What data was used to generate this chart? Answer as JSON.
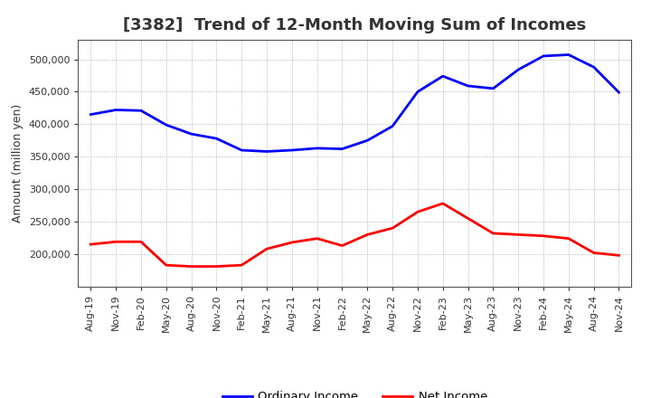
{
  "title": "[3382]  Trend of 12-Month Moving Sum of Incomes",
  "ylabel": "Amount (million yen)",
  "background_color": "#ffffff",
  "plot_bg_color": "#ffffff",
  "grid_color": "#999999",
  "x_labels": [
    "Aug-19",
    "Nov-19",
    "Feb-20",
    "May-20",
    "Aug-20",
    "Nov-20",
    "Feb-21",
    "May-21",
    "Aug-21",
    "Nov-21",
    "Feb-22",
    "May-22",
    "Aug-22",
    "Nov-22",
    "Feb-23",
    "May-23",
    "Aug-23",
    "Nov-23",
    "Feb-24",
    "May-24",
    "Aug-24",
    "Nov-24"
  ],
  "ordinary_income": [
    415000,
    422000,
    421000,
    399000,
    385000,
    378000,
    360000,
    358000,
    360000,
    363000,
    362000,
    375000,
    397000,
    450000,
    474000,
    459000,
    455000,
    484000,
    505000,
    507000,
    488000,
    449000
  ],
  "net_income": [
    215000,
    219000,
    219000,
    183000,
    181000,
    181000,
    183000,
    208000,
    218000,
    224000,
    213000,
    230000,
    240000,
    265000,
    278000,
    255000,
    232000,
    230000,
    228000,
    224000,
    202000,
    198000
  ],
  "ordinary_income_color": "#0000ff",
  "net_income_color": "#ff0000",
  "ylim_min": 150000,
  "ylim_max": 530000,
  "yticks": [
    200000,
    250000,
    300000,
    350000,
    400000,
    450000,
    500000
  ],
  "legend_labels": [
    "Ordinary Income",
    "Net Income"
  ],
  "line_width": 2.0,
  "title_fontsize": 13,
  "axis_label_fontsize": 9,
  "tick_fontsize": 8
}
